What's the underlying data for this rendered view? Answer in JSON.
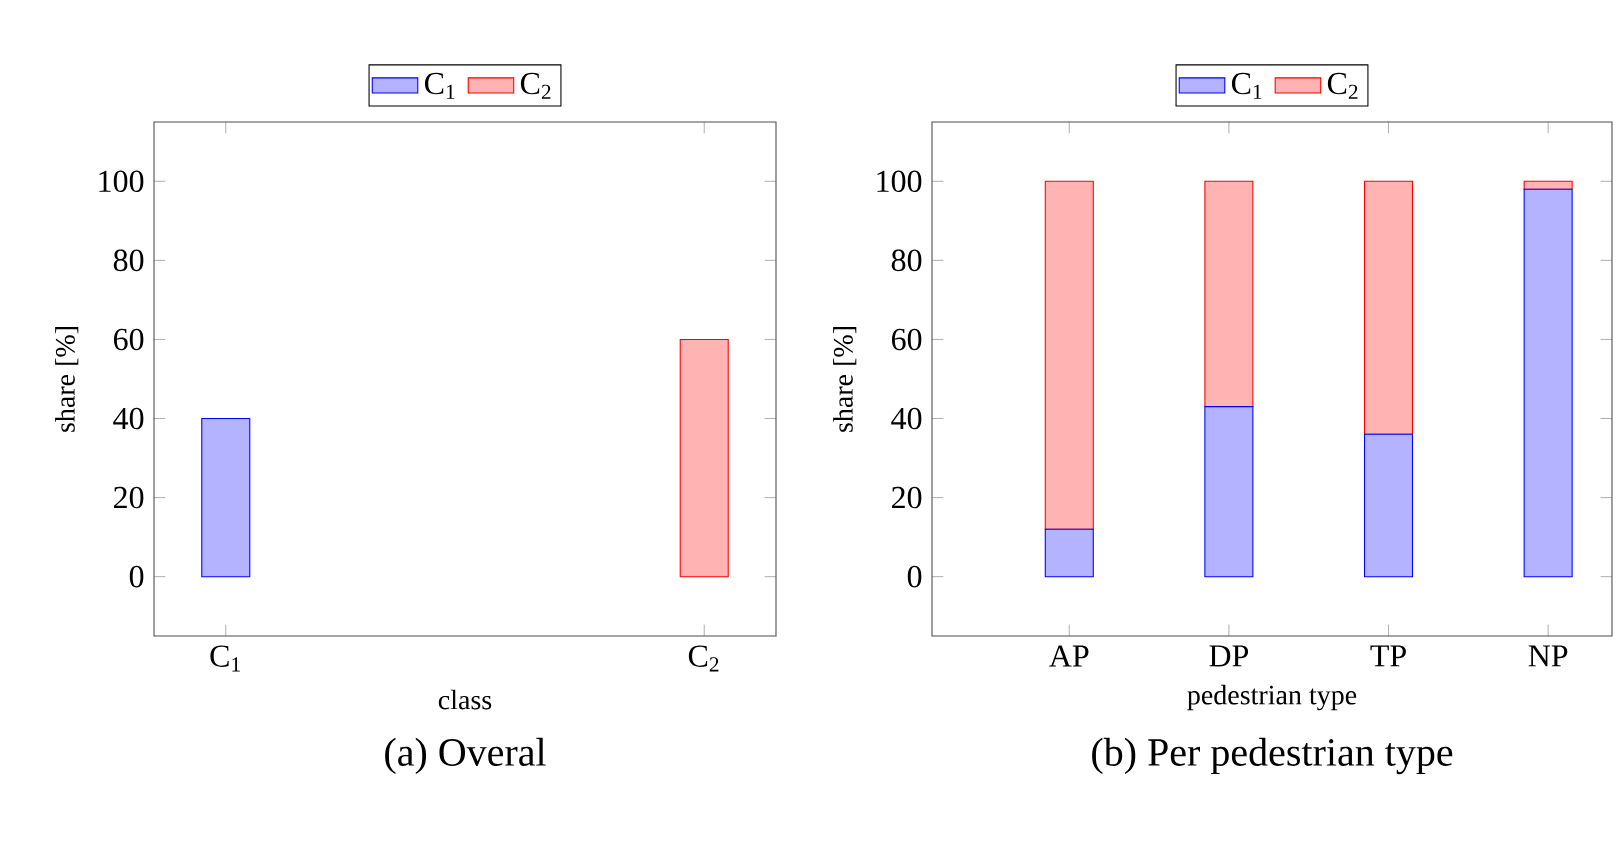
{
  "chart_data": [
    {
      "type": "bar",
      "title": "(a) Overal",
      "xlabel": "class",
      "ylabel": "share [%]",
      "stacked": true,
      "categories": [
        "C$_{1}$",
        "C$_{2}$"
      ],
      "series": [
        {
          "name": "C$_{1}$",
          "color": "#b3b3ff",
          "values": [
            40,
            0
          ]
        },
        {
          "name": "C$_{2}$",
          "color": "#ffb3b3",
          "values": [
            0,
            60
          ]
        }
      ],
      "ylim": [
        -15,
        115
      ],
      "yticks": [
        0,
        20,
        40,
        60,
        80,
        100
      ],
      "legend": "top"
    },
    {
      "type": "bar",
      "title": "(b) Per pedestrian type",
      "xlabel": "pedestrian type",
      "ylabel": "share [%]",
      "stacked": true,
      "categories": [
        "AP",
        "DP",
        "TP",
        "NP"
      ],
      "series": [
        {
          "name": "C$_{1}$",
          "color": "#b3b3ff",
          "values": [
            12,
            43,
            36,
            98
          ]
        },
        {
          "name": "C$_{2}$",
          "color": "#ffb3b3",
          "values": [
            88,
            57,
            64,
            2
          ]
        }
      ],
      "ylim": [
        -15,
        115
      ],
      "yticks": [
        0,
        20,
        40,
        60,
        80,
        100
      ],
      "legend": "top"
    }
  ]
}
